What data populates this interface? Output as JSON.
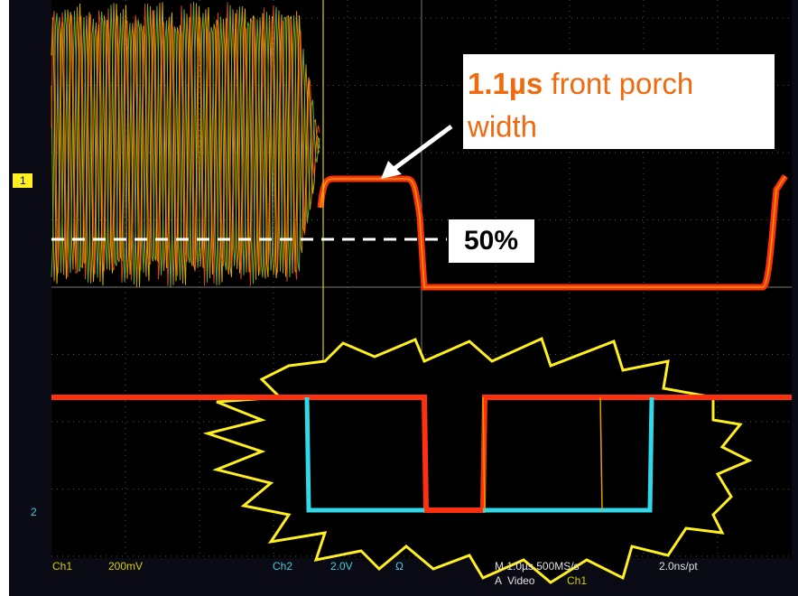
{
  "annotation": {
    "value": "1.1µs",
    "text": "front porch width"
  },
  "threshold_label": "50%",
  "channel_markers": [
    "1",
    "2"
  ],
  "status_bar": {
    "ch1": "Ch1",
    "ch1_scale": "200mV",
    "ch2": "Ch2",
    "ch2_scale": "2.0V",
    "ch2_coupling": "Ω",
    "timebase": "M 1.0µs 500MS/s",
    "resolution": "2.0ns/pt",
    "trigger": "A  Video",
    "trigger_source": "Ch1"
  }
}
